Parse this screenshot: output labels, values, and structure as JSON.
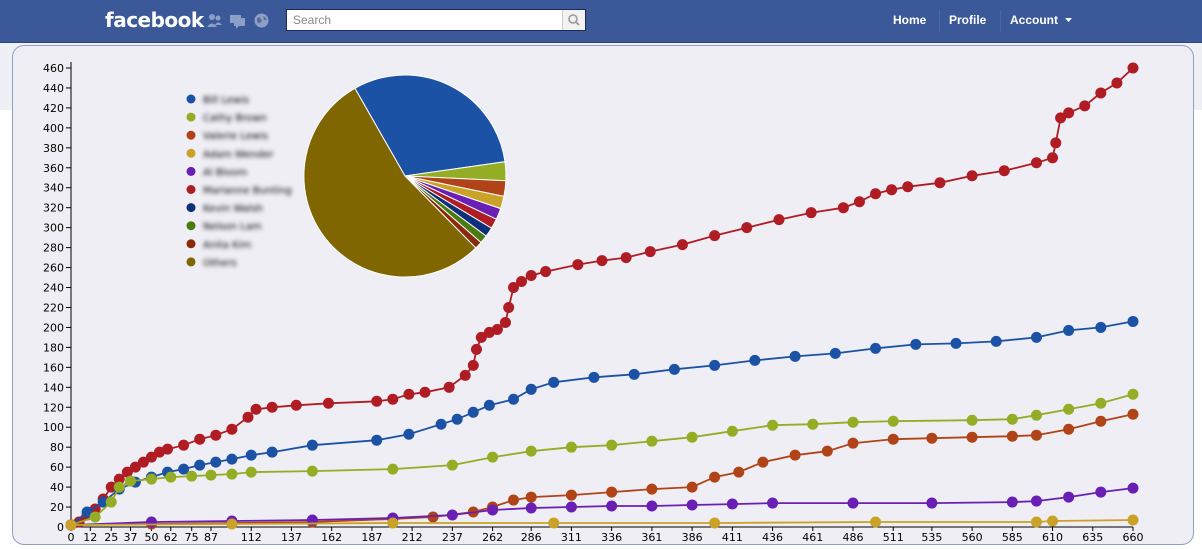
{
  "nav": {
    "logo": "facebook",
    "search_placeholder": "Search",
    "links": [
      "Home",
      "Profile",
      "Account"
    ],
    "icons": [
      "friends-icon",
      "messages-icon",
      "notifications-globe-icon",
      "search-icon",
      "chevron-down-icon"
    ],
    "bar_color": "#3b5998"
  },
  "chart_data": [
    {
      "type": "line",
      "title": "",
      "xlabel": "",
      "ylabel": "",
      "xlim": [
        0,
        660
      ],
      "ylim": [
        0,
        460
      ],
      "x_ticks": [
        0,
        12,
        25,
        37,
        50,
        62,
        75,
        87,
        112,
        137,
        162,
        187,
        212,
        237,
        262,
        286,
        311,
        336,
        361,
        386,
        411,
        436,
        461,
        486,
        511,
        535,
        560,
        585,
        610,
        635,
        660
      ],
      "y_ticks": [
        0,
        20,
        40,
        60,
        80,
        100,
        120,
        140,
        160,
        180,
        200,
        220,
        240,
        260,
        280,
        300,
        320,
        340,
        360,
        380,
        400,
        420,
        440,
        460
      ],
      "grid": false,
      "series": [
        {
          "color": "#b01c23",
          "points": [
            [
              0,
              2
            ],
            [
              5,
              5
            ],
            [
              10,
              12
            ],
            [
              15,
              18
            ],
            [
              20,
              28
            ],
            [
              25,
              40
            ],
            [
              30,
              48
            ],
            [
              35,
              55
            ],
            [
              40,
              60
            ],
            [
              45,
              65
            ],
            [
              50,
              70
            ],
            [
              55,
              75
            ],
            [
              60,
              78
            ],
            [
              70,
              82
            ],
            [
              80,
              88
            ],
            [
              90,
              92
            ],
            [
              100,
              98
            ],
            [
              110,
              110
            ],
            [
              115,
              118
            ],
            [
              125,
              120
            ],
            [
              140,
              122
            ],
            [
              160,
              124
            ],
            [
              190,
              126
            ],
            [
              200,
              128
            ],
            [
              210,
              133
            ],
            [
              220,
              135
            ],
            [
              235,
              140
            ],
            [
              245,
              152
            ],
            [
              250,
              162
            ],
            [
              252,
              178
            ],
            [
              255,
              190
            ],
            [
              260,
              195
            ],
            [
              265,
              198
            ],
            [
              270,
              205
            ],
            [
              272,
              220
            ],
            [
              275,
              240
            ],
            [
              280,
              246
            ],
            [
              286,
              252
            ],
            [
              295,
              256
            ],
            [
              315,
              263
            ],
            [
              330,
              267
            ],
            [
              345,
              270
            ],
            [
              360,
              276
            ],
            [
              380,
              283
            ],
            [
              400,
              292
            ],
            [
              420,
              300
            ],
            [
              440,
              308
            ],
            [
              460,
              315
            ],
            [
              480,
              320
            ],
            [
              490,
              326
            ],
            [
              500,
              334
            ],
            [
              510,
              338
            ],
            [
              520,
              341
            ],
            [
              540,
              345
            ],
            [
              560,
              352
            ],
            [
              580,
              357
            ],
            [
              600,
              365
            ],
            [
              610,
              370
            ],
            [
              612,
              385
            ],
            [
              615,
              410
            ],
            [
              620,
              415
            ],
            [
              630,
              422
            ],
            [
              640,
              435
            ],
            [
              650,
              445
            ],
            [
              660,
              460
            ]
          ]
        },
        {
          "color": "#1c52a6",
          "points": [
            [
              0,
              2
            ],
            [
              10,
              15
            ],
            [
              20,
              25
            ],
            [
              30,
              38
            ],
            [
              40,
              45
            ],
            [
              50,
              50
            ],
            [
              60,
              55
            ],
            [
              70,
              58
            ],
            [
              80,
              62
            ],
            [
              90,
              65
            ],
            [
              100,
              68
            ],
            [
              112,
              72
            ],
            [
              125,
              75
            ],
            [
              150,
              82
            ],
            [
              190,
              87
            ],
            [
              210,
              93
            ],
            [
              230,
              103
            ],
            [
              240,
              108
            ],
            [
              250,
              115
            ],
            [
              260,
              122
            ],
            [
              275,
              128
            ],
            [
              286,
              138
            ],
            [
              300,
              145
            ],
            [
              325,
              150
            ],
            [
              350,
              153
            ],
            [
              375,
              158
            ],
            [
              400,
              162
            ],
            [
              425,
              167
            ],
            [
              450,
              171
            ],
            [
              475,
              174
            ],
            [
              500,
              179
            ],
            [
              525,
              183
            ],
            [
              550,
              184
            ],
            [
              575,
              186
            ],
            [
              600,
              190
            ],
            [
              620,
              197
            ],
            [
              640,
              200
            ],
            [
              660,
              206
            ]
          ]
        },
        {
          "color": "#93ad24",
          "points": [
            [
              0,
              2
            ],
            [
              15,
              10
            ],
            [
              25,
              25
            ],
            [
              30,
              40
            ],
            [
              37,
              46
            ],
            [
              50,
              48
            ],
            [
              62,
              50
            ],
            [
              75,
              51
            ],
            [
              87,
              52
            ],
            [
              100,
              53
            ],
            [
              112,
              55
            ],
            [
              150,
              56
            ],
            [
              200,
              58
            ],
            [
              237,
              62
            ],
            [
              262,
              70
            ],
            [
              286,
              76
            ],
            [
              311,
              80
            ],
            [
              336,
              82
            ],
            [
              361,
              86
            ],
            [
              386,
              90
            ],
            [
              411,
              96
            ],
            [
              436,
              102
            ],
            [
              461,
              103
            ],
            [
              486,
              105
            ],
            [
              511,
              106
            ],
            [
              560,
              107
            ],
            [
              585,
              108
            ],
            [
              600,
              112
            ],
            [
              620,
              118
            ],
            [
              640,
              124
            ],
            [
              660,
              133
            ]
          ]
        },
        {
          "color": "#b04418",
          "points": [
            [
              0,
              2
            ],
            [
              50,
              3
            ],
            [
              100,
              4
            ],
            [
              150,
              5
            ],
            [
              200,
              8
            ],
            [
              225,
              10
            ],
            [
              250,
              15
            ],
            [
              262,
              20
            ],
            [
              275,
              27
            ],
            [
              286,
              30
            ],
            [
              311,
              32
            ],
            [
              336,
              35
            ],
            [
              361,
              38
            ],
            [
              386,
              40
            ],
            [
              400,
              50
            ],
            [
              415,
              55
            ],
            [
              430,
              65
            ],
            [
              450,
              72
            ],
            [
              470,
              76
            ],
            [
              486,
              84
            ],
            [
              511,
              88
            ],
            [
              535,
              89
            ],
            [
              560,
              90
            ],
            [
              585,
              91
            ],
            [
              600,
              92
            ],
            [
              620,
              98
            ],
            [
              640,
              106
            ],
            [
              660,
              113
            ]
          ]
        },
        {
          "color": "#6a1fb4",
          "points": [
            [
              0,
              2
            ],
            [
              50,
              5
            ],
            [
              100,
              6
            ],
            [
              150,
              7
            ],
            [
              200,
              9
            ],
            [
              237,
              12
            ],
            [
              262,
              17
            ],
            [
              286,
              19
            ],
            [
              311,
              20
            ],
            [
              336,
              21
            ],
            [
              361,
              21
            ],
            [
              386,
              22
            ],
            [
              411,
              23
            ],
            [
              436,
              24
            ],
            [
              486,
              24
            ],
            [
              535,
              24
            ],
            [
              585,
              25
            ],
            [
              600,
              26
            ],
            [
              620,
              30
            ],
            [
              640,
              35
            ],
            [
              660,
              39
            ]
          ]
        },
        {
          "color": "#c9a227",
          "points": [
            [
              0,
              2
            ],
            [
              100,
              3
            ],
            [
              200,
              4
            ],
            [
              300,
              4
            ],
            [
              400,
              4
            ],
            [
              500,
              5
            ],
            [
              600,
              5
            ],
            [
              610,
              6
            ],
            [
              660,
              7
            ]
          ]
        }
      ]
    },
    {
      "type": "pie",
      "title": "",
      "legend_placement": "left",
      "legend_entries": [
        "Bill Lewis",
        "Cathy Brown",
        "Valerie Lewis",
        "Adam Wender",
        "Al Bloom",
        "Marianne Bunting",
        "Kevin Walsh",
        "Nelson Lam",
        "Anita Kim",
        "Others"
      ],
      "series": [
        {
          "colors": [
            "#1c52a6",
            "#93ad24",
            "#b04418",
            "#c9a227",
            "#6a1fb4",
            "#b01c23",
            "#0e2f7a",
            "#4a7a10",
            "#8a2a0a",
            "#806600"
          ],
          "values": [
            31.0,
            3.0,
            2.5,
            2.0,
            1.8,
            1.6,
            1.5,
            1.3,
            1.2,
            54.1
          ]
        }
      ]
    }
  ]
}
